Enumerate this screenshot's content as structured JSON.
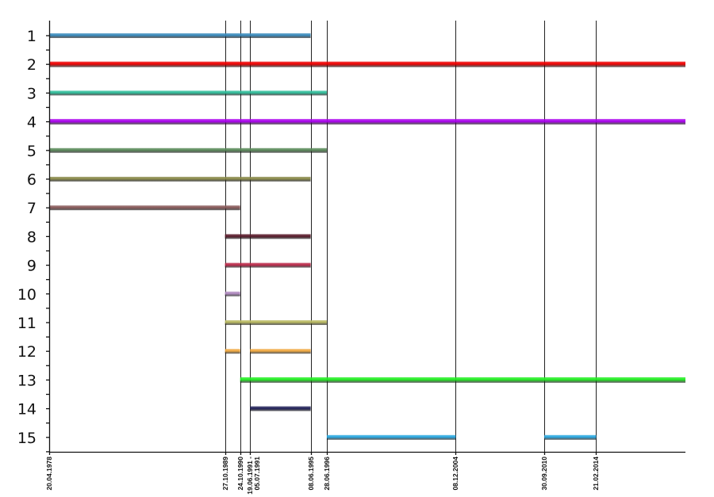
{
  "chart_data": {
    "type": "timeline",
    "title": "",
    "xlabel": "",
    "ylabel": "",
    "x_start": "1978-04-20",
    "x_end": "2019-12-31",
    "row_labels": [
      "1",
      "2",
      "3",
      "4",
      "5",
      "6",
      "7",
      "8",
      "9",
      "10",
      "11",
      "12",
      "13",
      "14",
      "15"
    ],
    "date_lines": [
      {
        "date": "1978-04-20",
        "label": "20.04.1978"
      },
      {
        "date": "1989-10-27",
        "label": "27.10.1989"
      },
      {
        "date": "1990-10-24",
        "label": "24.10.1990"
      },
      {
        "date": "1991-06-19",
        "label": "19.06.1991 -\n05.07.1991"
      },
      {
        "date": "1995-06-08",
        "label": "08.06.1995"
      },
      {
        "date": "1996-06-28",
        "label": "28.06.1996"
      },
      {
        "date": "2004-12-08",
        "label": "08.12.2004"
      },
      {
        "date": "2010-09-30",
        "label": "30.09.2010"
      },
      {
        "date": "2014-02-21",
        "label": "21.02.2014"
      }
    ],
    "series": [
      {
        "row": "1",
        "color": "#3a8bbd",
        "segments": [
          [
            "1978-04-20",
            "1995-06-08"
          ]
        ]
      },
      {
        "row": "2",
        "color": "#ee0000",
        "segments": [
          [
            "1978-04-20",
            "2019-12-31"
          ]
        ]
      },
      {
        "row": "3",
        "color": "#2ebd9a",
        "segments": [
          [
            "1978-04-20",
            "1996-06-28"
          ]
        ]
      },
      {
        "row": "4",
        "color": "#aa00ee",
        "segments": [
          [
            "1978-04-20",
            "2019-12-31"
          ]
        ]
      },
      {
        "row": "5",
        "color": "#5a8a5a",
        "segments": [
          [
            "1978-04-20",
            "1996-06-28"
          ]
        ]
      },
      {
        "row": "6",
        "color": "#8a8a4a",
        "segments": [
          [
            "1978-04-20",
            "1995-06-08"
          ]
        ]
      },
      {
        "row": "7",
        "color": "#8a5a5a",
        "segments": [
          [
            "1978-04-20",
            "1990-10-24"
          ]
        ]
      },
      {
        "row": "8",
        "color": "#5a1a2a",
        "segments": [
          [
            "1989-10-27",
            "1995-06-08"
          ]
        ]
      },
      {
        "row": "9",
        "color": "#bb2a4a",
        "segments": [
          [
            "1989-10-27",
            "1995-06-08"
          ]
        ]
      },
      {
        "row": "10",
        "color": "#b08ac0",
        "segments": [
          [
            "1989-10-27",
            "1990-10-24"
          ]
        ]
      },
      {
        "row": "11",
        "color": "#b8b860",
        "segments": [
          [
            "1989-10-27",
            "1996-06-28"
          ]
        ]
      },
      {
        "row": "12",
        "color": "#f0a840",
        "segments": [
          [
            "1989-10-27",
            "1990-10-24"
          ],
          [
            "1991-06-19",
            "1995-06-08"
          ]
        ]
      },
      {
        "row": "13",
        "color": "#22ee22",
        "segments": [
          [
            "1990-10-24",
            "2019-12-31"
          ]
        ]
      },
      {
        "row": "14",
        "color": "#22225a",
        "segments": [
          [
            "1991-06-19",
            "1995-06-08"
          ]
        ]
      },
      {
        "row": "15",
        "color": "#2aa8e0",
        "segments": [
          [
            "1996-06-28",
            "2004-12-08"
          ],
          [
            "2010-09-30",
            "2014-02-21"
          ]
        ]
      }
    ]
  }
}
